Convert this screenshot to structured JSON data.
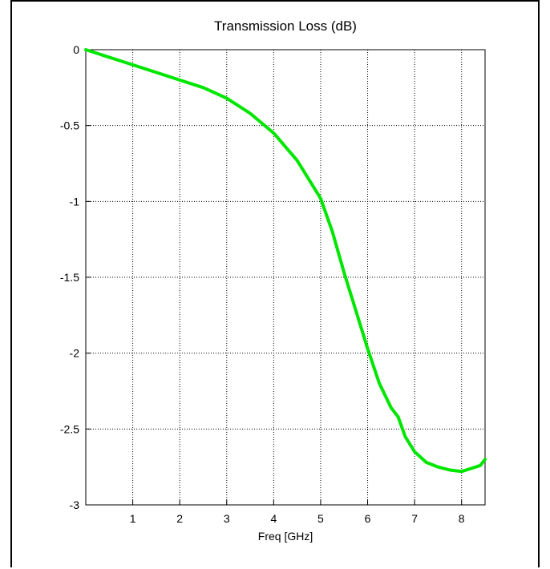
{
  "chart_data": {
    "type": "line",
    "title": "Transmission Loss (dB)",
    "xlabel": "Freq [GHz]",
    "ylabel": "",
    "xlim": [
      0,
      8.5
    ],
    "ylim": [
      -3,
      0
    ],
    "xticks": [
      1,
      2,
      3,
      4,
      5,
      6,
      7,
      8
    ],
    "xtick_labels": [
      "1",
      "2",
      "3",
      "4",
      "5",
      "6",
      "7",
      "8"
    ],
    "yticks": [
      0,
      -0.5,
      -1,
      -1.5,
      -2,
      -2.5,
      -3
    ],
    "ytick_labels": [
      "0",
      "-0.5",
      "-1",
      "-1.5",
      "-2",
      "-2.5",
      "-3"
    ],
    "grid": true,
    "grid_style": "dotted",
    "series": [
      {
        "color": "#00e600",
        "x": [
          0,
          0.5,
          1,
          1.5,
          2,
          2.5,
          3,
          3.5,
          4,
          4.5,
          5,
          5.25,
          5.5,
          5.75,
          6,
          6.25,
          6.5,
          6.65,
          6.8,
          7,
          7.25,
          7.5,
          7.75,
          8,
          8.2,
          8.4,
          8.5
        ],
        "y": [
          0,
          -0.05,
          -0.1,
          -0.15,
          -0.2,
          -0.25,
          -0.32,
          -0.42,
          -0.55,
          -0.73,
          -0.98,
          -1.2,
          -1.47,
          -1.72,
          -1.97,
          -2.2,
          -2.36,
          -2.42,
          -2.55,
          -2.65,
          -2.72,
          -2.75,
          -2.77,
          -2.78,
          -2.76,
          -2.74,
          -2.7
        ]
      }
    ]
  }
}
